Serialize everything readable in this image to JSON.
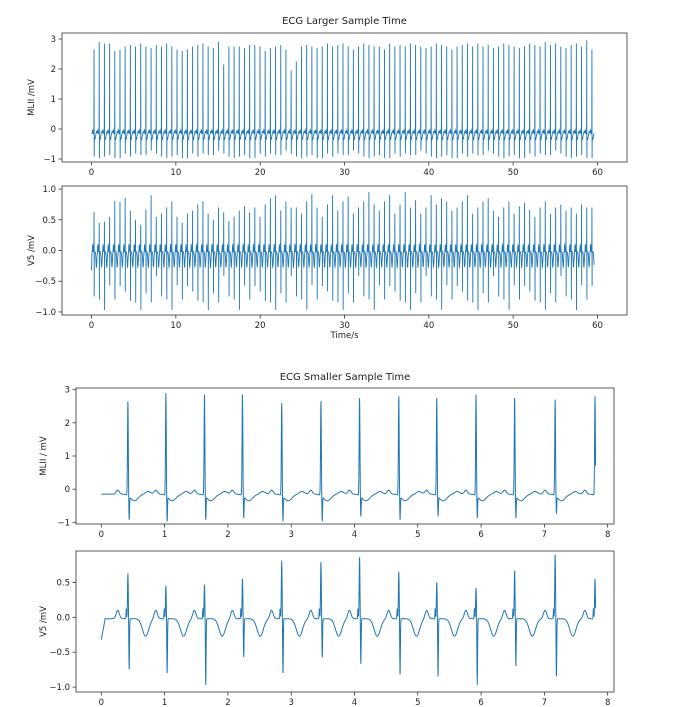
{
  "chart_data": [
    {
      "type": "line",
      "title": "ECG Larger Sample Time",
      "xlabel": "Time/s",
      "color": "#1f77b4",
      "xlim": [
        -3.5,
        63.5
      ],
      "xticks": [
        0,
        10,
        20,
        30,
        40,
        50,
        60
      ],
      "rr_interval_s": 0.615,
      "first_beat_s": 0.3,
      "panels": [
        {
          "ylabel": "MLII /mV",
          "ylim": [
            -1.1,
            3.2
          ],
          "yticks": [
            -1,
            0,
            1,
            2,
            3
          ],
          "baseline": -0.15,
          "r_peaks": [
            2.7,
            2.95,
            2.9,
            2.9,
            2.65,
            2.7,
            2.8,
            2.85,
            2.8,
            2.9,
            2.8,
            2.75,
            2.85,
            2.8,
            2.9,
            2.8,
            2.7,
            2.65,
            2.7,
            2.8,
            2.85,
            2.9,
            2.8,
            2.75,
            2.95,
            2.2,
            2.8,
            2.8,
            2.8,
            2.75,
            2.85,
            2.85,
            2.8,
            2.65,
            2.75,
            2.8,
            2.85,
            2.7,
            2.0,
            2.3,
            2.8,
            2.85,
            2.8,
            2.75,
            2.8,
            2.9,
            2.8,
            2.85,
            2.9,
            2.8,
            2.7,
            2.8,
            2.9,
            2.85,
            2.8,
            2.8,
            2.7,
            2.9,
            2.8,
            2.85,
            2.8,
            2.9,
            2.85,
            2.8,
            2.75,
            2.8,
            2.9,
            2.85,
            2.8,
            2.7,
            2.8,
            2.85,
            2.9,
            2.8,
            2.9,
            2.8,
            2.85,
            2.75,
            2.8,
            2.9,
            2.85,
            2.8,
            2.75,
            2.8,
            2.9,
            2.85,
            2.8,
            2.95,
            2.85,
            2.9,
            2.8,
            2.75,
            2.85,
            2.9,
            2.8,
            3.0,
            2.7
          ],
          "s_mins": [
            -0.85,
            -0.9,
            -0.85,
            -0.8,
            -0.9,
            -0.9,
            -0.75,
            -0.85,
            -0.75,
            -0.8,
            -0.8,
            -0.65,
            -0.75
          ]
        },
        {
          "ylabel": "V5 /mV",
          "ylim": [
            -1.05,
            1.05
          ],
          "yticks": [
            -1.0,
            -0.5,
            0.0,
            0.5,
            1.0
          ],
          "baseline": -0.02,
          "r_peaks": [
            0.63,
            0.45,
            0.47,
            0.55,
            0.81,
            0.79,
            0.86,
            0.65,
            0.5,
            0.42,
            0.67,
            0.9,
            0.55,
            0.6,
            0.7,
            0.8,
            0.55,
            0.45,
            0.6,
            0.65,
            0.75,
            0.8,
            0.6,
            0.5,
            0.7,
            0.62,
            0.48,
            0.55,
            0.65,
            0.72,
            0.62,
            0.7,
            0.55,
            0.75,
            0.85,
            0.9,
            0.65,
            0.8,
            0.7,
            0.7,
            0.6,
            0.8,
            0.92,
            0.7,
            0.55,
            0.75,
            0.9,
            0.65,
            0.8,
            0.88,
            0.6,
            0.7,
            0.8,
            0.95,
            0.75,
            0.65,
            0.8,
            0.9,
            0.6,
            0.75,
            0.95,
            0.7,
            0.82,
            0.6,
            0.7,
            0.9,
            0.75,
            0.85,
            0.8,
            0.65,
            0.7,
            0.8,
            0.9,
            0.6,
            0.7,
            0.8,
            0.85,
            0.65,
            0.55,
            0.7,
            0.8,
            0.6,
            0.72,
            0.78,
            0.66,
            0.55,
            0.7,
            0.8,
            0.6,
            0.7,
            0.75,
            0.65,
            0.7,
            0.6,
            0.75,
            0.7,
            0.7
          ],
          "s_mins": [
            -0.75,
            -0.8,
            -0.97,
            -0.57,
            -0.8,
            -0.58,
            -0.67,
            -0.82,
            -0.85,
            -0.97,
            -0.7,
            -0.85,
            -0.42
          ]
        }
      ]
    },
    {
      "type": "line",
      "title": "ECG Smaller Sample Time",
      "color": "#1f77b4",
      "xlim": [
        -0.4,
        8.1
      ],
      "xticks": [
        0,
        1,
        2,
        3,
        4,
        5,
        6,
        7,
        8
      ],
      "beat_times_s": [
        0.42,
        1.02,
        1.63,
        2.23,
        2.85,
        3.47,
        4.08,
        4.7,
        5.3,
        5.92,
        6.53,
        7.17,
        7.8
      ],
      "panels": [
        {
          "ylabel": "MLII / mV",
          "ylim": [
            -1.05,
            3.05
          ],
          "yticks": [
            -1,
            0,
            1,
            2,
            3
          ],
          "baseline": -0.15,
          "r_peaks": [
            2.7,
            2.95,
            2.9,
            2.9,
            2.65,
            2.7,
            2.8,
            2.85,
            2.8,
            2.9,
            2.8,
            2.75,
            2.85
          ],
          "s_mins": [
            -0.85,
            -0.9,
            -0.85,
            -0.8,
            -0.9,
            -0.9,
            -0.75,
            -0.85,
            -0.75,
            -0.8,
            -0.8,
            -0.65,
            -0.75
          ]
        },
        {
          "ylabel": "V5 /mV",
          "ylim": [
            -1.07,
            0.95
          ],
          "yticks": [
            -1.0,
            -0.5,
            0.0,
            0.5
          ],
          "baseline": -0.02,
          "r_peaks": [
            0.63,
            0.45,
            0.47,
            0.55,
            0.81,
            0.79,
            0.86,
            0.65,
            0.5,
            0.42,
            0.67,
            0.9,
            0.55
          ],
          "s_mins": [
            -0.75,
            -0.8,
            -0.97,
            -0.57,
            -0.8,
            -0.58,
            -0.67,
            -0.82,
            -0.85,
            -0.97,
            -0.7,
            -0.85,
            -0.42
          ]
        }
      ]
    }
  ]
}
